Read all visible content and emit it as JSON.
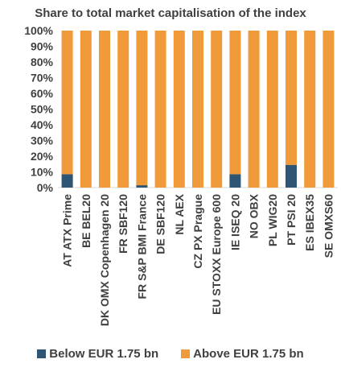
{
  "chart_data": {
    "type": "bar",
    "stacked": true,
    "title": "Share to total market capitalisation of the index",
    "categories": [
      "AT ATX Prime",
      "BE BEL20",
      "DK OMX Copenhagen 20",
      "FR SBF120",
      "FR S&P BMI France",
      "DE SBF120",
      "NL AEX",
      "CZ PX Prague",
      "EU STOXX Europe 600",
      "IE ISEQ 20",
      "NO OBX",
      "PL WIG20",
      "PT PSI 20",
      "ES IBEX35",
      "SE OMXS60"
    ],
    "series": [
      {
        "name": "Below EUR 1.75 bn",
        "color": "#2e5573",
        "values": [
          8.5,
          0,
          0,
          0,
          1.5,
          0,
          0,
          0,
          0,
          8.5,
          0,
          0,
          14.5,
          0,
          0
        ]
      },
      {
        "name": "Above EUR 1.75 bn",
        "color": "#f19a39",
        "values": [
          91.5,
          100,
          100,
          100,
          98.5,
          100,
          100,
          100,
          100,
          91.5,
          100,
          100,
          85.5,
          100,
          100
        ]
      }
    ],
    "ylim": [
      0,
      100
    ],
    "yticks": [
      "0%",
      "10%",
      "20%",
      "30%",
      "40%",
      "50%",
      "60%",
      "70%",
      "80%",
      "90%",
      "100%"
    ],
    "grid": false,
    "legend_position": "bottom"
  }
}
